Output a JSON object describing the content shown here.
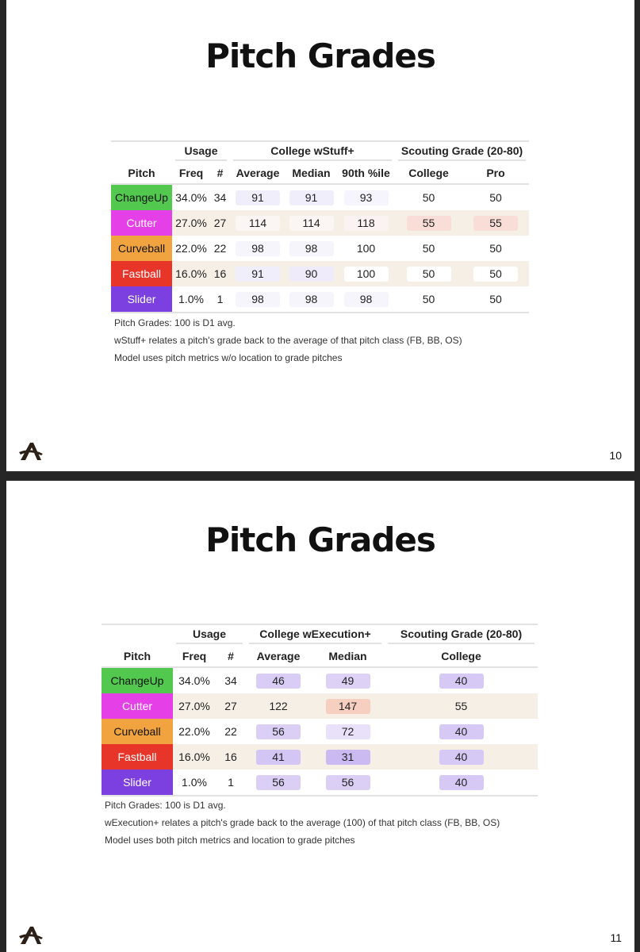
{
  "slides": [
    {
      "title": "Pitch Grades",
      "table": {
        "groups": [
          "Usage",
          "College wStuff+",
          "Scouting Grade (20-80)"
        ],
        "headers": [
          "Pitch",
          "Freq",
          "#",
          "Average",
          "Median",
          "90th %ile",
          "College",
          "Pro"
        ],
        "rows": [
          {
            "pitch": "ChangeUp",
            "color": "#52c94e",
            "text_color": "#111111",
            "cells": [
              "34.0%",
              34,
              91,
              91,
              93,
              50,
              50
            ],
            "shades": [
              null,
              null,
              "#f1eefb",
              "#f1eefb",
              "#f6f4fc",
              "#ffffff",
              "#ffffff"
            ]
          },
          {
            "pitch": "Cutter",
            "color": "#e540e8",
            "text_color": "#ffffff",
            "cells": [
              "27.0%",
              27,
              114,
              114,
              118,
              55,
              55
            ],
            "shades": [
              null,
              null,
              "#fbf6f3",
              "#fbf6f3",
              "#fbf3f1",
              "#f9ddd7",
              "#f9ddd7"
            ]
          },
          {
            "pitch": "Curveball",
            "color": "#f0a33f",
            "text_color": "#111111",
            "cells": [
              "22.0%",
              22,
              98,
              98,
              100,
              50,
              50
            ],
            "shades": [
              null,
              null,
              "#f7f5fc",
              "#f7f5fc",
              "#ffffff",
              "#ffffff",
              "#ffffff"
            ]
          },
          {
            "pitch": "Fastball",
            "color": "#e8352a",
            "text_color": "#ffffff",
            "cells": [
              "16.0%",
              16,
              91,
              90,
              100,
              50,
              50
            ],
            "shades": [
              null,
              null,
              "#f1eefb",
              "#efebfa",
              "#ffffff",
              "#ffffff",
              "#ffffff"
            ]
          },
          {
            "pitch": "Slider",
            "color": "#7c3fe0",
            "text_color": "#ffffff",
            "cells": [
              "1.0%",
              1,
              98,
              98,
              98,
              50,
              50
            ],
            "shades": [
              null,
              null,
              "#f7f5fc",
              "#f7f5fc",
              "#f7f5fc",
              "#ffffff",
              "#ffffff"
            ]
          }
        ]
      },
      "notes": [
        "Pitch Grades: 100 is D1 avg.",
        "wStuff+ relates a pitch's grade back to the average of that pitch class (FB, BB, OS)",
        "Model uses pitch metrics w/o location to grade pitches"
      ],
      "page_number": 10
    },
    {
      "title": "Pitch Grades",
      "table": {
        "groups": [
          "Usage",
          "College wExecution+",
          "Scouting Grade (20-80)"
        ],
        "headers": [
          "Pitch",
          "Freq",
          "#",
          "Average",
          "Median",
          "College"
        ],
        "rows": [
          {
            "pitch": "ChangeUp",
            "color": "#52c94e",
            "text_color": "#111111",
            "cells": [
              "34.0%",
              34,
              46,
              49,
              40
            ],
            "shades": [
              null,
              null,
              "#d9cdf5",
              "#ddd2f6",
              "#d6c9f5"
            ]
          },
          {
            "pitch": "Cutter",
            "color": "#e540e8",
            "text_color": "#ffffff",
            "cells": [
              "27.0%",
              27,
              122,
              147,
              55
            ],
            "shades": [
              null,
              null,
              null,
              "#f6cfc0",
              null
            ]
          },
          {
            "pitch": "Curveball",
            "color": "#f0a33f",
            "text_color": "#111111",
            "cells": [
              "22.0%",
              22,
              56,
              72,
              40
            ],
            "shades": [
              null,
              null,
              "#dccff5",
              "#e9e1f9",
              "#d6c9f5"
            ]
          },
          {
            "pitch": "Fastball",
            "color": "#e8352a",
            "text_color": "#ffffff",
            "cells": [
              "16.0%",
              16,
              41,
              31,
              40
            ],
            "shades": [
              null,
              null,
              "#d3c5f4",
              "#cbbaf2",
              "#d6c9f5"
            ]
          },
          {
            "pitch": "Slider",
            "color": "#7c3fe0",
            "text_color": "#ffffff",
            "cells": [
              "1.0%",
              1,
              56,
              56,
              40
            ],
            "shades": [
              null,
              null,
              "#dccff5",
              "#dccff5",
              "#d6c9f5"
            ]
          }
        ]
      },
      "notes": [
        "Pitch Grades: 100 is D1 avg.",
        "wExecution+ relates a pitch's grade back to the average (100) of that pitch class (FB, BB, OS)",
        "Model uses both pitch metrics and location to grade pitches"
      ],
      "page_number": 11
    }
  ]
}
